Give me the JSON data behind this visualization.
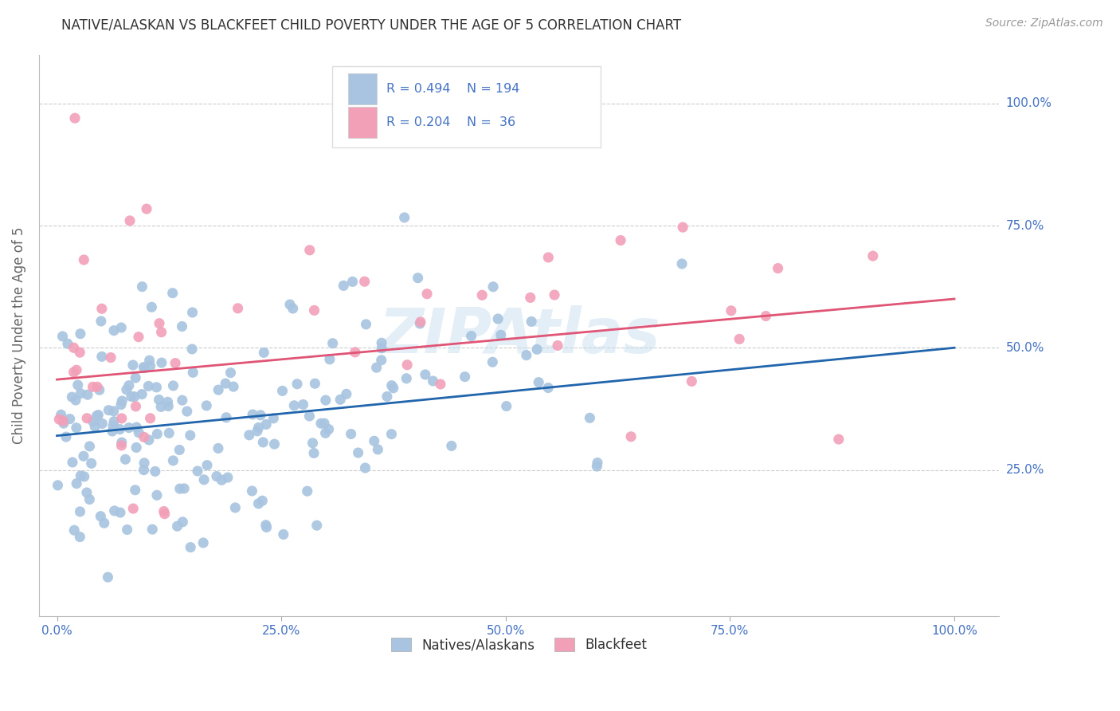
{
  "title": "NATIVE/ALASKAN VS BLACKFEET CHILD POVERTY UNDER THE AGE OF 5 CORRELATION CHART",
  "source": "Source: ZipAtlas.com",
  "ylabel": "Child Poverty Under the Age of 5",
  "xlim": [
    -0.02,
    1.05
  ],
  "ylim": [
    -0.05,
    1.1
  ],
  "blue_R": 0.494,
  "blue_N": 194,
  "pink_R": 0.204,
  "pink_N": 36,
  "blue_line_x0": 0.0,
  "blue_line_y0": 0.32,
  "blue_line_x1": 1.0,
  "blue_line_y1": 0.5,
  "pink_line_x0": 0.0,
  "pink_line_y0": 0.435,
  "pink_line_x1": 1.0,
  "pink_line_y1": 0.6,
  "blue_color": "#a8c4e0",
  "pink_color": "#f2a0b8",
  "blue_line_color": "#2166ac",
  "pink_line_color": "#e05575",
  "watermark": "ZIPAtlas",
  "legend_blue_label": "Natives/Alaskans",
  "legend_pink_label": "Blackfeet",
  "background_color": "#ffffff",
  "grid_color": "#cccccc",
  "title_color": "#333333",
  "axis_label_color": "#666666",
  "tick_color": "#4472c4",
  "ytick_values": [
    0.25,
    0.5,
    0.75,
    1.0
  ],
  "ytick_labels": [
    "25.0%",
    "50.0%",
    "75.0%",
    "100.0%"
  ],
  "xtick_values": [
    0.0,
    0.25,
    0.5,
    0.75,
    1.0
  ],
  "xtick_labels": [
    "0.0%",
    "25.0%",
    "50.0%",
    "75.0%",
    "100.0%"
  ]
}
